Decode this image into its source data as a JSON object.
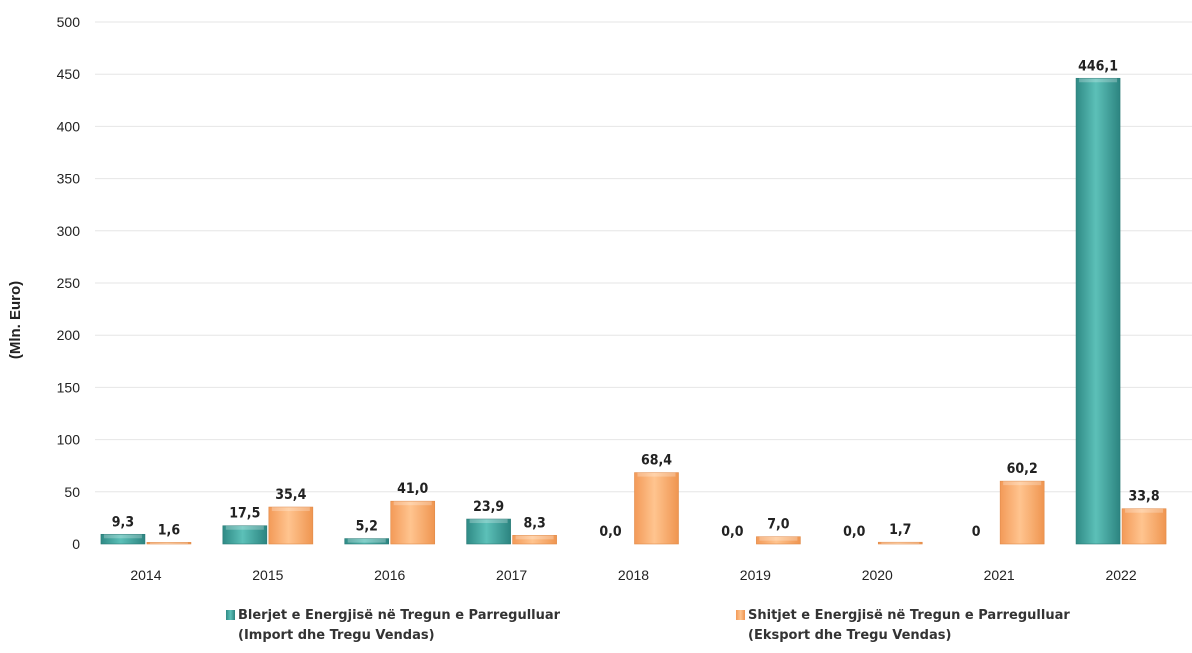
{
  "chart_data": {
    "type": "bar",
    "ylabel": "(Mln. Euro)",
    "ylim": [
      0,
      500
    ],
    "yticks": [
      "0",
      "50",
      "100",
      "150",
      "200",
      "250",
      "300",
      "350",
      "400",
      "450",
      "500"
    ],
    "categories": [
      "2014",
      "2015",
      "2016",
      "2017",
      "2018",
      "2019",
      "2020",
      "2021",
      "2022"
    ],
    "grid": true,
    "legend_position": "bottom",
    "series": [
      {
        "name": "Blerjet e Energjisë në Tregun e Parregulluar",
        "subname": "(Import dhe Tregu Vendas)",
        "color": "#3a9e98",
        "values": [
          9.3,
          17.5,
          5.2,
          23.9,
          0.0,
          0.0,
          0.0,
          0,
          446.1
        ],
        "labels": [
          "9,3",
          "17,5",
          "5,2",
          "23,9",
          "0,0",
          "0,0",
          "0,0",
          "0",
          "446,1"
        ]
      },
      {
        "name": "Shitjet e Energjisë në Tregun e Parregulluar",
        "subname": "(Eksport dhe Tregu Vendas)",
        "color": "#f7a96b",
        "values": [
          1.6,
          35.4,
          41.0,
          8.3,
          68.4,
          7.0,
          1.7,
          60.2,
          33.8
        ],
        "labels": [
          "1,6",
          "35,4",
          "41,0",
          "8,3",
          "68,4",
          "7,0",
          "1,7",
          "60,2",
          "33,8"
        ]
      }
    ]
  }
}
